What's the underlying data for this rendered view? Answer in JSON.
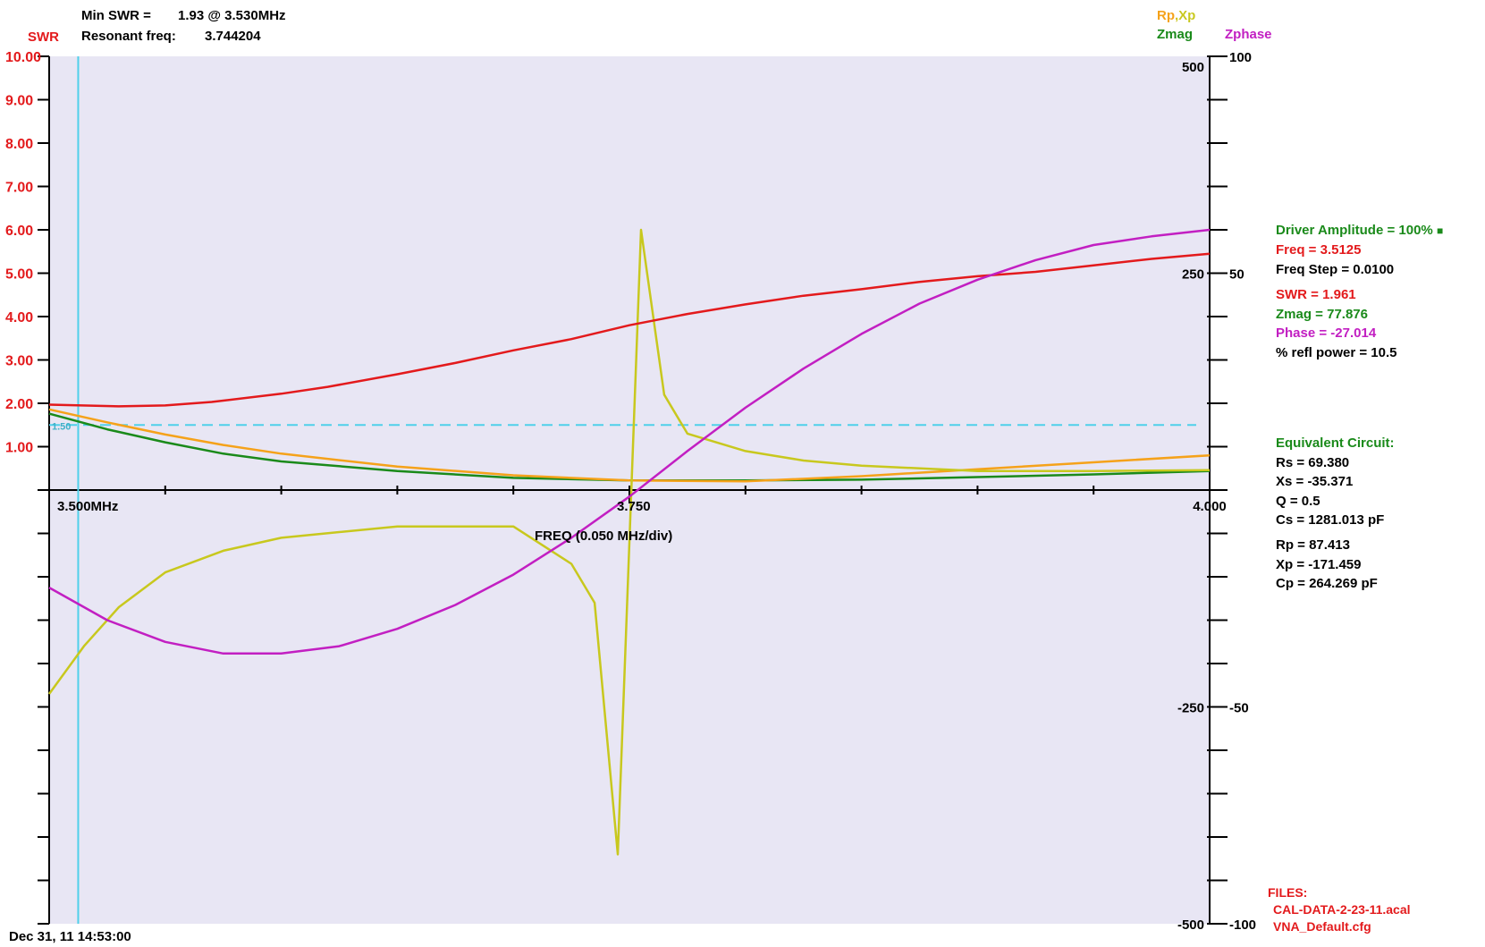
{
  "header": {
    "min_swr_label": "Min SWR =",
    "min_swr_value": "1.93 @  3.530MHz",
    "resonant_label": "Resonant freq:",
    "resonant_value": "3.744204",
    "swr_axis_label": "SWR"
  },
  "legend": {
    "rpxp": "Rp,Xp",
    "zmag": "Zmag",
    "zphase": "Zphase"
  },
  "colors": {
    "swr": "#e31a1c",
    "zmag": "#1a8a1a",
    "rp": "#f5a21a",
    "xp": "#c8c81e",
    "zphase": "#c21fc2",
    "marker": "#4fd0ea",
    "plot_bg": "#e8e6f4"
  },
  "readouts": {
    "driver_amplitude": "Driver Amplitude = 100%",
    "freq": "Freq =  3.5125",
    "freq_step": "Freq Step =  0.0100",
    "swr": "SWR =   1.961",
    "zmag": "Zmag =   77.876",
    "phase": "Phase =  -27.014",
    "refl_power": "% refl power = 10.5"
  },
  "equivalent_circuit": {
    "title": "Equivalent Circuit:",
    "rs": "Rs =    69.380",
    "xs": "Xs =   -35.371",
    "q": "Q =   0.5",
    "cs": "Cs = 1281.013  pF",
    "rp": "Rp =    87.413",
    "xp": "Xp = -171.459",
    "cp": "Cp =  264.269  pF"
  },
  "files": {
    "title": "FILES:",
    "cal": "CAL-DATA-2-23-11.acal",
    "cfg": "VNA_Default.cfg"
  },
  "timestamp": "Dec 31, 11  14:53:00",
  "chart_data": {
    "type": "line",
    "x_axis": {
      "label": "FREQ (0.050 MHz/div)",
      "range": [
        3.5,
        4.0
      ],
      "tick_labels": [
        "3.500MHz",
        "3.750",
        "4.000"
      ],
      "tick_values": [
        3.5,
        3.75,
        4.0
      ],
      "divisions": 10
    },
    "y_axes": {
      "swr": {
        "range": [
          0,
          10
        ],
        "tick_labels": [
          "1.00",
          "2.00",
          "3.00",
          "4.00",
          "5.00",
          "6.00",
          "7.00",
          "8.00",
          "9.00",
          "10.00"
        ],
        "tick_values": [
          1,
          2,
          3,
          4,
          5,
          6,
          7,
          8,
          9,
          10
        ]
      },
      "impedance": {
        "range": [
          -500,
          500
        ],
        "tick_labels": [
          "500",
          "250",
          "-250",
          "-500"
        ],
        "tick_values": [
          500,
          250,
          -250,
          -500
        ]
      },
      "phase": {
        "range": [
          -100,
          100
        ],
        "tick_labels": [
          "100",
          "50",
          "-50",
          "-100"
        ],
        "tick_values": [
          100,
          50,
          -50,
          -100
        ]
      }
    },
    "swr_reference": {
      "value": 1.5,
      "label": "1.50"
    },
    "marker_freq": 3.5125,
    "series": [
      {
        "name": "SWR",
        "axis": "swr",
        "color": "#e31a1c",
        "x": [
          3.5,
          3.53,
          3.55,
          3.57,
          3.6,
          3.62,
          3.65,
          3.675,
          3.7,
          3.725,
          3.75,
          3.775,
          3.8,
          3.825,
          3.85,
          3.875,
          3.9,
          3.925,
          3.95,
          3.975,
          4.0
        ],
        "y": [
          1.97,
          1.93,
          1.95,
          2.03,
          2.22,
          2.38,
          2.67,
          2.93,
          3.22,
          3.48,
          3.8,
          4.06,
          4.28,
          4.48,
          4.63,
          4.8,
          4.93,
          5.03,
          5.18,
          5.33,
          5.45
        ]
      },
      {
        "name": "Zmag",
        "axis": "impedance",
        "color": "#1a8a1a",
        "x": [
          3.5,
          3.525,
          3.55,
          3.575,
          3.6,
          3.65,
          3.7,
          3.75,
          3.8,
          3.85,
          3.9,
          3.95,
          4.0
        ],
        "y": [
          88,
          70,
          55,
          42,
          33,
          22,
          14,
          11,
          11,
          12,
          15,
          18,
          22
        ]
      },
      {
        "name": "Rp",
        "axis": "impedance",
        "color": "#f5a21a",
        "x": [
          3.5,
          3.525,
          3.55,
          3.575,
          3.6,
          3.65,
          3.7,
          3.75,
          3.8,
          3.85,
          3.9,
          3.95,
          4.0
        ],
        "y": [
          93,
          78,
          64,
          52,
          42,
          27,
          17,
          11,
          10,
          16,
          24,
          32,
          40
        ]
      },
      {
        "name": "Xp",
        "axis": "impedance",
        "color": "#c8c81e",
        "x": [
          3.5,
          3.515,
          3.53,
          3.55,
          3.575,
          3.6,
          3.65,
          3.7,
          3.725,
          3.735,
          3.745,
          3.755,
          3.765,
          3.775,
          3.8,
          3.825,
          3.85,
          3.9,
          3.95,
          4.0
        ],
        "y": [
          -235,
          -180,
          -135,
          -95,
          -70,
          -55,
          -42,
          -42,
          -85,
          -130,
          -420,
          300,
          110,
          65,
          45,
          34,
          28,
          22,
          22,
          23
        ]
      },
      {
        "name": "Zphase",
        "axis": "phase",
        "color": "#c21fc2",
        "x": [
          3.5,
          3.525,
          3.55,
          3.575,
          3.6,
          3.625,
          3.65,
          3.675,
          3.7,
          3.725,
          3.75,
          3.775,
          3.8,
          3.825,
          3.85,
          3.875,
          3.9,
          3.925,
          3.95,
          3.975,
          4.0
        ],
        "y": [
          -22.5,
          -30,
          -35,
          -37.7,
          -37.7,
          -36,
          -32,
          -26.5,
          -19.5,
          -11,
          -1.5,
          9,
          19,
          28,
          36,
          43,
          48.5,
          53,
          56.5,
          58.5,
          60
        ]
      }
    ]
  }
}
